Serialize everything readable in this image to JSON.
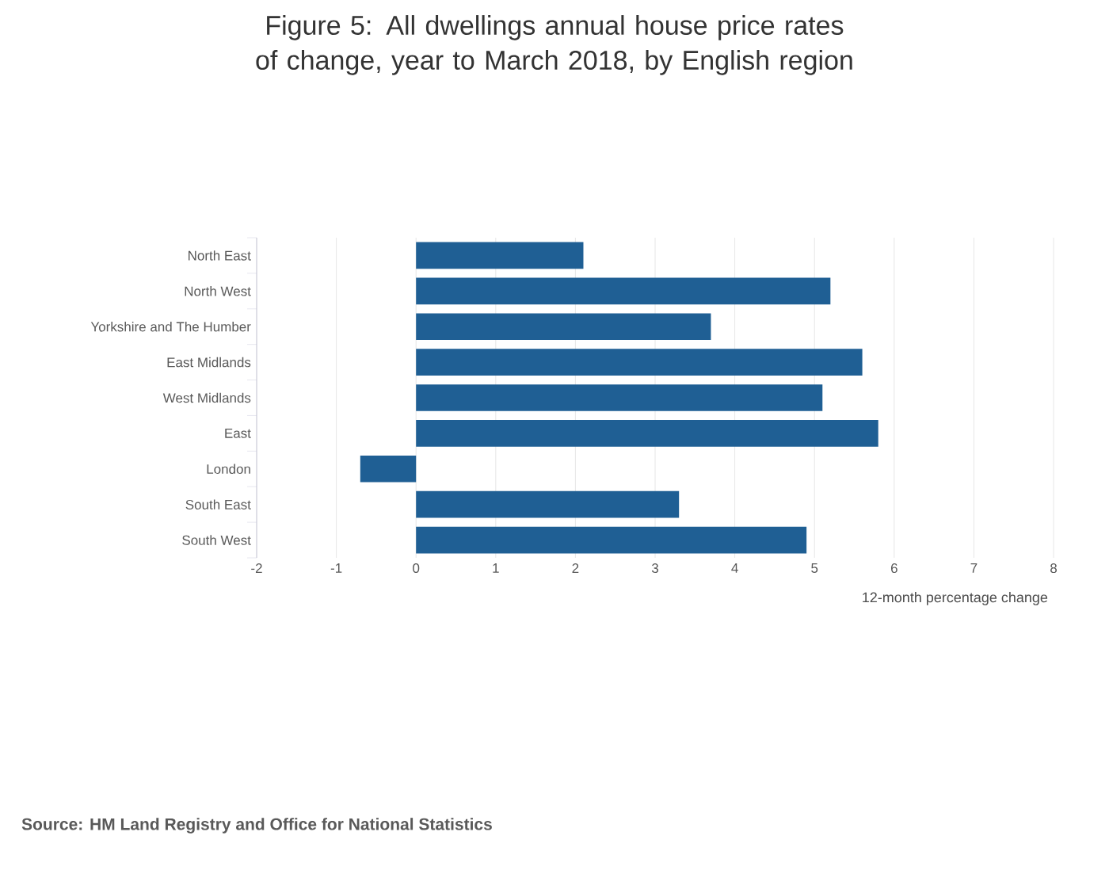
{
  "chart_data": {
    "type": "bar",
    "orientation": "horizontal",
    "title": "Figure 5: All dwellings annual house price rates of change, year to March 2018, by English region",
    "categories": [
      "North East",
      "North West",
      "Yorkshire and The Humber",
      "East Midlands",
      "West Midlands",
      "East",
      "London",
      "South East",
      "South West"
    ],
    "values": [
      2.1,
      5.2,
      3.7,
      5.6,
      5.1,
      5.8,
      -0.7,
      3.3,
      4.9
    ],
    "color": "#1f5f94",
    "xlim": [
      -2,
      8
    ],
    "xticks": [
      -2,
      -1,
      0,
      1,
      2,
      3,
      4,
      5,
      6,
      7,
      8
    ],
    "xlabel": "12-month percentage change",
    "grid": "x",
    "annotations": [
      "Source: HM Land Registry and Office for National Statistics"
    ]
  }
}
